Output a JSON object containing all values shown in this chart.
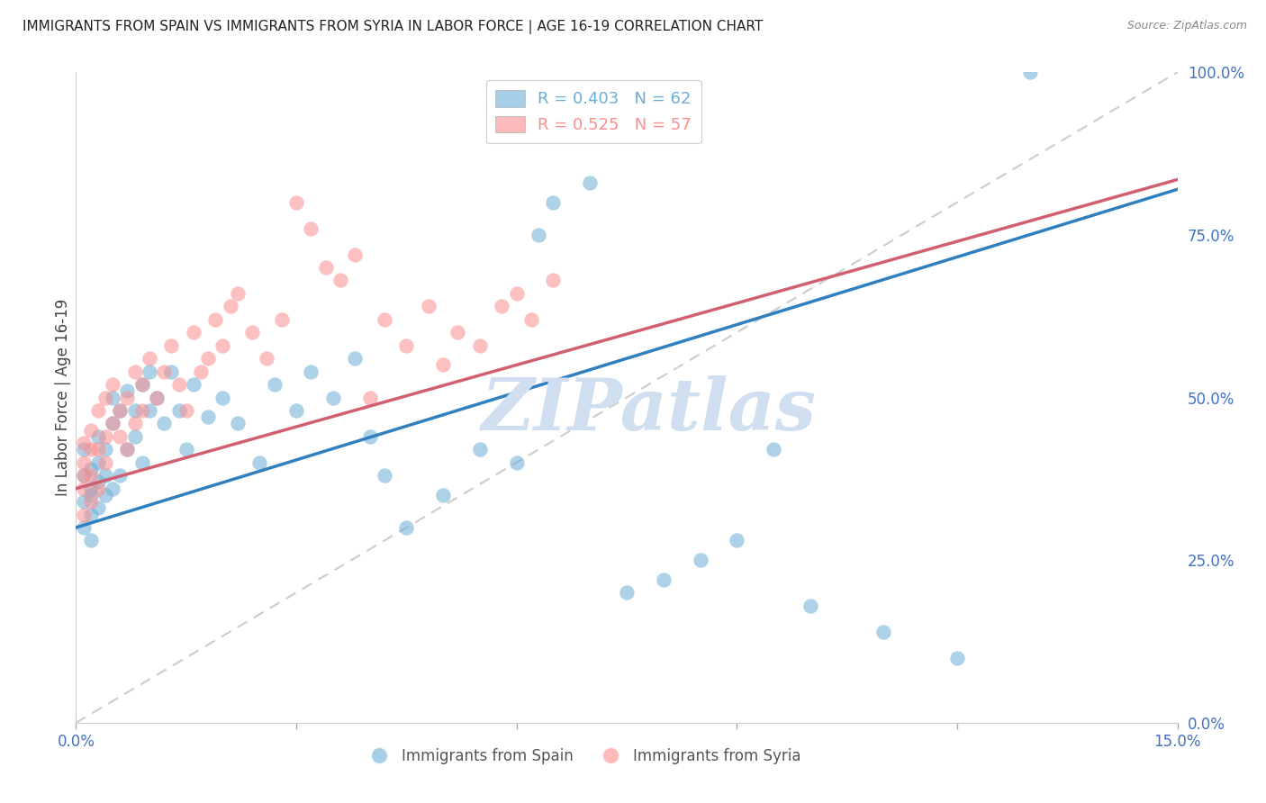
{
  "title": "IMMIGRANTS FROM SPAIN VS IMMIGRANTS FROM SYRIA IN LABOR FORCE | AGE 16-19 CORRELATION CHART",
  "source": "Source: ZipAtlas.com",
  "ylabel": "In Labor Force | Age 16-19",
  "xlim": [
    0.0,
    0.15
  ],
  "ylim": [
    0.0,
    1.0
  ],
  "xticks": [
    0.0,
    0.15
  ],
  "xticklabels": [
    "0.0%",
    "15.0%"
  ],
  "yticks": [
    0.0,
    0.25,
    0.5,
    0.75,
    1.0
  ],
  "yticklabels": [
    "0.0%",
    "25.0%",
    "50.0%",
    "75.0%",
    "100.0%"
  ],
  "legend1_label": "Immigrants from Spain",
  "legend2_label": "Immigrants from Syria",
  "R_spain": 0.403,
  "N_spain": 62,
  "R_syria": 0.525,
  "N_syria": 57,
  "color_spain": "#6baed6",
  "color_syria": "#fc8d8d",
  "spain_line_x0": 0.0,
  "spain_line_y0": 0.3,
  "spain_line_x1": 0.15,
  "spain_line_y1": 0.82,
  "syria_line_x0": 0.0,
  "syria_line_y0": 0.36,
  "syria_line_x1": 0.06,
  "syria_line_y1": 0.55,
  "ref_line_x": [
    0.0,
    0.15
  ],
  "ref_line_y": [
    0.0,
    1.0
  ],
  "background_color": "#ffffff",
  "grid_color": "#d0d0d0",
  "title_color": "#222222",
  "axis_color": "#4472c4",
  "watermark": "ZIPatlas",
  "watermark_color": "#d0dff0",
  "spain_scatter_x": [
    0.001,
    0.001,
    0.001,
    0.001,
    0.002,
    0.002,
    0.002,
    0.002,
    0.002,
    0.003,
    0.003,
    0.003,
    0.003,
    0.004,
    0.004,
    0.004,
    0.005,
    0.005,
    0.005,
    0.006,
    0.006,
    0.007,
    0.007,
    0.008,
    0.008,
    0.009,
    0.009,
    0.01,
    0.01,
    0.011,
    0.012,
    0.013,
    0.014,
    0.015,
    0.016,
    0.018,
    0.02,
    0.022,
    0.025,
    0.027,
    0.03,
    0.032,
    0.035,
    0.038,
    0.04,
    0.042,
    0.045,
    0.05,
    0.055,
    0.06,
    0.063,
    0.065,
    0.07,
    0.075,
    0.08,
    0.085,
    0.09,
    0.095,
    0.1,
    0.11,
    0.12,
    0.13
  ],
  "spain_scatter_y": [
    0.38,
    0.34,
    0.42,
    0.3,
    0.36,
    0.39,
    0.35,
    0.32,
    0.28,
    0.4,
    0.37,
    0.33,
    0.44,
    0.35,
    0.38,
    0.42,
    0.36,
    0.46,
    0.5,
    0.38,
    0.48,
    0.42,
    0.51,
    0.44,
    0.48,
    0.4,
    0.52,
    0.48,
    0.54,
    0.5,
    0.46,
    0.54,
    0.48,
    0.42,
    0.52,
    0.47,
    0.5,
    0.46,
    0.4,
    0.52,
    0.48,
    0.54,
    0.5,
    0.56,
    0.44,
    0.38,
    0.3,
    0.35,
    0.42,
    0.4,
    0.75,
    0.8,
    0.83,
    0.2,
    0.22,
    0.25,
    0.28,
    0.42,
    0.18,
    0.14,
    0.1,
    1.0
  ],
  "syria_scatter_x": [
    0.001,
    0.001,
    0.001,
    0.001,
    0.001,
    0.002,
    0.002,
    0.002,
    0.002,
    0.003,
    0.003,
    0.003,
    0.004,
    0.004,
    0.004,
    0.005,
    0.005,
    0.006,
    0.006,
    0.007,
    0.007,
    0.008,
    0.008,
    0.009,
    0.009,
    0.01,
    0.011,
    0.012,
    0.013,
    0.014,
    0.015,
    0.016,
    0.017,
    0.018,
    0.019,
    0.02,
    0.021,
    0.022,
    0.024,
    0.026,
    0.028,
    0.03,
    0.032,
    0.034,
    0.036,
    0.038,
    0.04,
    0.042,
    0.045,
    0.048,
    0.05,
    0.052,
    0.055,
    0.058,
    0.06,
    0.062,
    0.065
  ],
  "syria_scatter_y": [
    0.4,
    0.36,
    0.43,
    0.38,
    0.32,
    0.42,
    0.45,
    0.38,
    0.34,
    0.42,
    0.48,
    0.36,
    0.44,
    0.5,
    0.4,
    0.46,
    0.52,
    0.44,
    0.48,
    0.5,
    0.42,
    0.54,
    0.46,
    0.52,
    0.48,
    0.56,
    0.5,
    0.54,
    0.58,
    0.52,
    0.48,
    0.6,
    0.54,
    0.56,
    0.62,
    0.58,
    0.64,
    0.66,
    0.6,
    0.56,
    0.62,
    0.8,
    0.76,
    0.7,
    0.68,
    0.72,
    0.5,
    0.62,
    0.58,
    0.64,
    0.55,
    0.6,
    0.58,
    0.64,
    0.66,
    0.62,
    0.68
  ]
}
